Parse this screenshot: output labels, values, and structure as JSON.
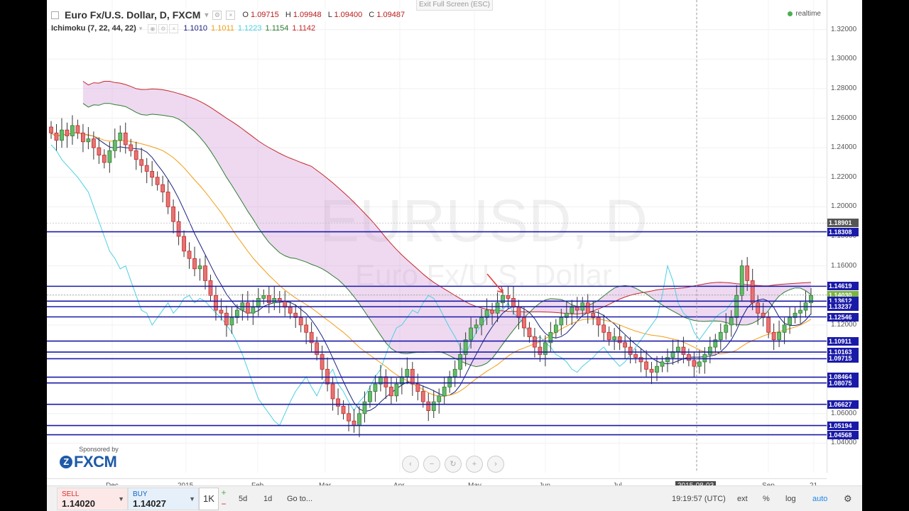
{
  "exit_fullscreen": "Exit Full Screen (ESC)",
  "legend": {
    "symbol_title": "Euro Fx/U.S. Dollar, D, FXCM",
    "ohlc": [
      {
        "k": "O",
        "v": "1.09715"
      },
      {
        "k": "H",
        "v": "1.09948"
      },
      {
        "k": "L",
        "v": "1.09400"
      },
      {
        "k": "C",
        "v": "1.09487"
      }
    ],
    "indicator": "Ichimoku (7, 22, 44, 22)",
    "indicator_values": [
      {
        "v": "1.1010",
        "color": "#1a237e"
      },
      {
        "v": "1.1011",
        "color": "#f39c12"
      },
      {
        "v": "1.1223",
        "color": "#4dd0e1"
      },
      {
        "v": "1.1154",
        "color": "#2e7d32"
      },
      {
        "v": "1.1142",
        "color": "#c62828"
      }
    ]
  },
  "realtime": "realtime",
  "watermark": {
    "line1": "EURUSD, D",
    "line2": "Euro Fx/U.S. Dollar"
  },
  "sponsor": {
    "text": "Sponsored by",
    "brand": "FXCM"
  },
  "nav_icons": [
    "chevron-left-icon",
    "minus-icon",
    "reset-icon",
    "plus-icon",
    "chevron-right-icon"
  ],
  "chart_data": {
    "type": "candlestick",
    "symbol": "EURUSD",
    "timeframe": "D",
    "ylim": [
      1.02,
      1.34
    ],
    "y_ticks": [
      "1.32000",
      "1.30000",
      "1.28000",
      "1.26000",
      "1.24000",
      "1.22000",
      "1.20000",
      "1.18000",
      "1.16000",
      "1.14000",
      "1.12000",
      "1.10000",
      "1.08000",
      "1.06000",
      "1.04000"
    ],
    "x_ticks": [
      "Dec",
      "2015",
      "Feb",
      "Mar",
      "Apr",
      "May",
      "Jun",
      "Jul",
      "2015-08-03",
      "Sep",
      "21"
    ],
    "horizontal_levels": [
      "1.18308",
      "1.14619",
      "1.13612",
      "1.13237",
      "1.12546",
      "1.10911",
      "1.10163",
      "1.09715",
      "1.08464",
      "1.08075",
      "1.06627",
      "1.05194",
      "1.04568"
    ],
    "price_labels": [
      {
        "v": "1.18901",
        "color": "#555555"
      },
      {
        "v": "1.18308",
        "color": "#1a1aa8"
      },
      {
        "v": "1.14619",
        "color": "#1a1aa8"
      },
      {
        "v": "1.14030",
        "color": "#7cb342"
      },
      {
        "v": "1.13612",
        "color": "#1a1aa8"
      },
      {
        "v": "1.13237",
        "color": "#1a1aa8"
      },
      {
        "v": "1.12546",
        "color": "#1a1aa8"
      },
      {
        "v": "1.10911",
        "color": "#1a1aa8"
      },
      {
        "v": "1.10163",
        "color": "#1a1aa8"
      },
      {
        "v": "1.09715",
        "color": "#1a1aa8"
      },
      {
        "v": "1.08464",
        "color": "#1a1aa8"
      },
      {
        "v": "1.08075",
        "color": "#1a1aa8"
      },
      {
        "v": "1.06627",
        "color": "#1a1aa8"
      },
      {
        "v": "1.05194",
        "color": "#1a1aa8"
      },
      {
        "v": "1.04568",
        "color": "#1a1aa8"
      }
    ],
    "crosshair_date": "2015-08-03",
    "closes": [
      1.25,
      1.245,
      1.252,
      1.248,
      1.255,
      1.25,
      1.244,
      1.246,
      1.24,
      1.235,
      1.23,
      1.238,
      1.245,
      1.25,
      1.242,
      1.238,
      1.232,
      1.228,
      1.224,
      1.22,
      1.215,
      1.21,
      1.2,
      1.19,
      1.18,
      1.17,
      1.165,
      1.158,
      1.16,
      1.15,
      1.14,
      1.13,
      1.128,
      1.12,
      1.125,
      1.13,
      1.135,
      1.128,
      1.132,
      1.138,
      1.14,
      1.135,
      1.138,
      1.136,
      1.132,
      1.128,
      1.125,
      1.12,
      1.115,
      1.108,
      1.1,
      1.09,
      1.08,
      1.07,
      1.065,
      1.06,
      1.055,
      1.052,
      1.06,
      1.068,
      1.075,
      1.08,
      1.085,
      1.078,
      1.072,
      1.08,
      1.085,
      1.09,
      1.08,
      1.075,
      1.068,
      1.062,
      1.068,
      1.072,
      1.078,
      1.085,
      1.09,
      1.1,
      1.11,
      1.118,
      1.12,
      1.125,
      1.13,
      1.128,
      1.135,
      1.14,
      1.138,
      1.132,
      1.125,
      1.118,
      1.112,
      1.105,
      1.1,
      1.108,
      1.115,
      1.12,
      1.125,
      1.128,
      1.132,
      1.13,
      1.135,
      1.128,
      1.125,
      1.12,
      1.115,
      1.11,
      1.112,
      1.108,
      1.105,
      1.1,
      1.098,
      1.095,
      1.09,
      1.088,
      1.092,
      1.095,
      1.098,
      1.102,
      1.105,
      1.1,
      1.096,
      1.092,
      1.095,
      1.1,
      1.105,
      1.11,
      1.115,
      1.12,
      1.125,
      1.14,
      1.16,
      1.15,
      1.135,
      1.128,
      1.125,
      1.115,
      1.11,
      1.115,
      1.12,
      1.125,
      1.128,
      1.13,
      1.135,
      1.14
    ]
  },
  "bottom_bar": {
    "sell_label": "SELL",
    "sell_price": "1.14020",
    "buy_label": "BUY",
    "buy_price": "1.14027",
    "quantity": "1K",
    "plus": "+",
    "minus": "−",
    "range_5d": "5d",
    "range_1d": "1d",
    "goto": "Go to...",
    "time": "19:19:57 (UTC)",
    "ext": "ext",
    "percent": "%",
    "log": "log",
    "auto": "auto"
  }
}
